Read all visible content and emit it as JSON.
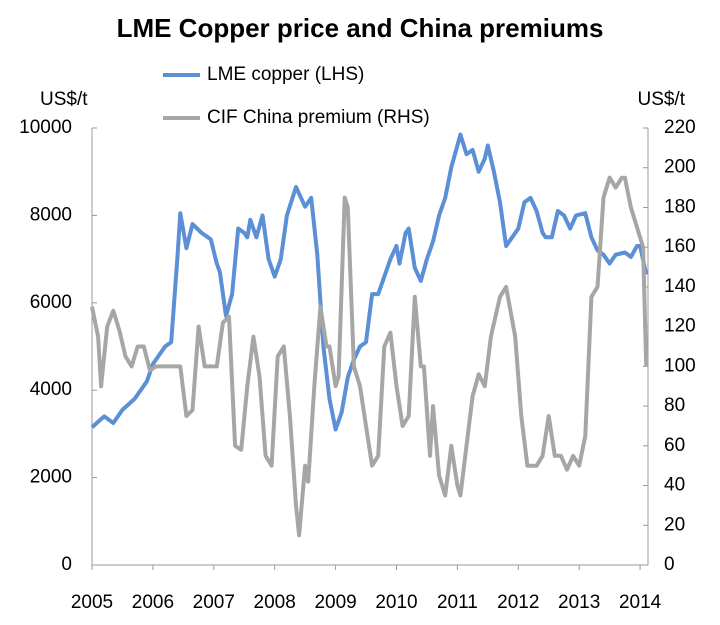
{
  "chart_data": {
    "type": "line",
    "title": "LME Copper price and China premiums",
    "y_label": "US$/t",
    "y2_label": "US$/t",
    "xlim": [
      2005,
      2014.13
    ],
    "xticks": [
      2005,
      2006,
      2007,
      2008,
      2009,
      2010,
      2011,
      2012,
      2013,
      2014
    ],
    "ylim": [
      0,
      10000
    ],
    "yticks": [
      0,
      2000,
      4000,
      6000,
      8000,
      10000
    ],
    "y2lim": [
      0,
      220
    ],
    "y2ticks": [
      0,
      20,
      40,
      60,
      80,
      100,
      120,
      140,
      160,
      180,
      200,
      220
    ],
    "legend": "top",
    "series": [
      {
        "name": "LME copper (LHS)",
        "color": "#5b8fd6",
        "x": [
          2005.0,
          2005.2,
          2005.35,
          2005.5,
          2005.7,
          2005.9,
          2006.0,
          2006.2,
          2006.3,
          2006.4,
          2006.45,
          2006.55,
          2006.65,
          2006.8,
          2006.95,
          2007.05,
          2007.1,
          2007.2,
          2007.3,
          2007.4,
          2007.5,
          2007.55,
          2007.6,
          2007.7,
          2007.8,
          2007.9,
          2008.0,
          2008.1,
          2008.2,
          2008.35,
          2008.5,
          2008.6,
          2008.7,
          2008.8,
          2008.9,
          2009.0,
          2009.1,
          2009.2,
          2009.3,
          2009.4,
          2009.5,
          2009.6,
          2009.7,
          2009.8,
          2009.9,
          2010.0,
          2010.05,
          2010.15,
          2010.2,
          2010.3,
          2010.4,
          2010.5,
          2010.6,
          2010.7,
          2010.8,
          2010.9,
          2011.0,
          2011.05,
          2011.15,
          2011.25,
          2011.35,
          2011.45,
          2011.5,
          2011.6,
          2011.7,
          2011.8,
          2011.9,
          2012.0,
          2012.1,
          2012.2,
          2012.3,
          2012.4,
          2012.45,
          2012.55,
          2012.65,
          2012.75,
          2012.85,
          2012.95,
          2013.1,
          2013.2,
          2013.3,
          2013.4,
          2013.5,
          2013.6,
          2013.75,
          2013.85,
          2013.95,
          2014.0,
          2014.1
        ],
        "values": [
          3150,
          3400,
          3250,
          3550,
          3800,
          4200,
          4600,
          5000,
          5100,
          7000,
          8050,
          7250,
          7800,
          7600,
          7450,
          6900,
          6700,
          5700,
          6200,
          7700,
          7600,
          7500,
          7900,
          7500,
          8000,
          7000,
          6600,
          7000,
          8000,
          8650,
          8200,
          8400,
          7100,
          5000,
          3800,
          3100,
          3500,
          4300,
          4700,
          5000,
          5100,
          6200,
          6200,
          6600,
          7000,
          7300,
          6900,
          7600,
          7700,
          6800,
          6500,
          7000,
          7400,
          8000,
          8400,
          9100,
          9600,
          9850,
          9400,
          9500,
          9000,
          9300,
          9600,
          9000,
          8300,
          7300,
          7500,
          7700,
          8300,
          8400,
          8100,
          7600,
          7500,
          7500,
          8100,
          8000,
          7700,
          8000,
          8050,
          7500,
          7200,
          7100,
          6900,
          7100,
          7150,
          7050,
          7300,
          7300,
          6650
        ]
      },
      {
        "name": "CIF China premium (RHS)",
        "color": "#a6a6a6",
        "axis": "y2",
        "x": [
          2005.0,
          2005.1,
          2005.15,
          2005.25,
          2005.35,
          2005.45,
          2005.55,
          2005.65,
          2005.75,
          2005.85,
          2005.95,
          2006.05,
          2006.2,
          2006.35,
          2006.45,
          2006.55,
          2006.65,
          2006.75,
          2006.85,
          2006.95,
          2007.05,
          2007.15,
          2007.25,
          2007.35,
          2007.45,
          2007.55,
          2007.65,
          2007.75,
          2007.85,
          2007.95,
          2008.05,
          2008.15,
          2008.25,
          2008.35,
          2008.4,
          2008.5,
          2008.55,
          2008.65,
          2008.75,
          2008.85,
          2008.9,
          2009.0,
          2009.05,
          2009.15,
          2009.2,
          2009.3,
          2009.4,
          2009.5,
          2009.6,
          2009.7,
          2009.8,
          2009.9,
          2010.0,
          2010.1,
          2010.2,
          2010.3,
          2010.4,
          2010.45,
          2010.55,
          2010.6,
          2010.7,
          2010.8,
          2010.9,
          2011.0,
          2011.05,
          2011.15,
          2011.25,
          2011.35,
          2011.45,
          2011.55,
          2011.7,
          2011.8,
          2011.95,
          2012.05,
          2012.15,
          2012.3,
          2012.4,
          2012.5,
          2012.6,
          2012.7,
          2012.8,
          2012.9,
          2013.0,
          2013.1,
          2013.2,
          2013.3,
          2013.4,
          2013.5,
          2013.6,
          2013.7,
          2013.75,
          2013.85,
          2013.95,
          2014.05,
          2014.1
        ],
        "values": [
          130,
          115,
          90,
          120,
          128,
          118,
          105,
          100,
          110,
          110,
          98,
          100,
          100,
          100,
          100,
          75,
          78,
          120,
          100,
          100,
          100,
          122,
          125,
          60,
          58,
          90,
          115,
          95,
          55,
          50,
          105,
          110,
          75,
          30,
          15,
          50,
          42,
          90,
          130,
          110,
          110,
          90,
          95,
          185,
          180,
          100,
          90,
          70,
          50,
          55,
          110,
          117,
          90,
          70,
          75,
          135,
          100,
          100,
          55,
          80,
          45,
          35,
          60,
          40,
          35,
          60,
          85,
          96,
          90,
          115,
          135,
          140,
          115,
          75,
          50,
          50,
          55,
          75,
          55,
          55,
          48,
          55,
          50,
          65,
          135,
          140,
          185,
          195,
          190,
          195,
          195,
          180,
          170,
          160,
          100
        ]
      }
    ]
  }
}
